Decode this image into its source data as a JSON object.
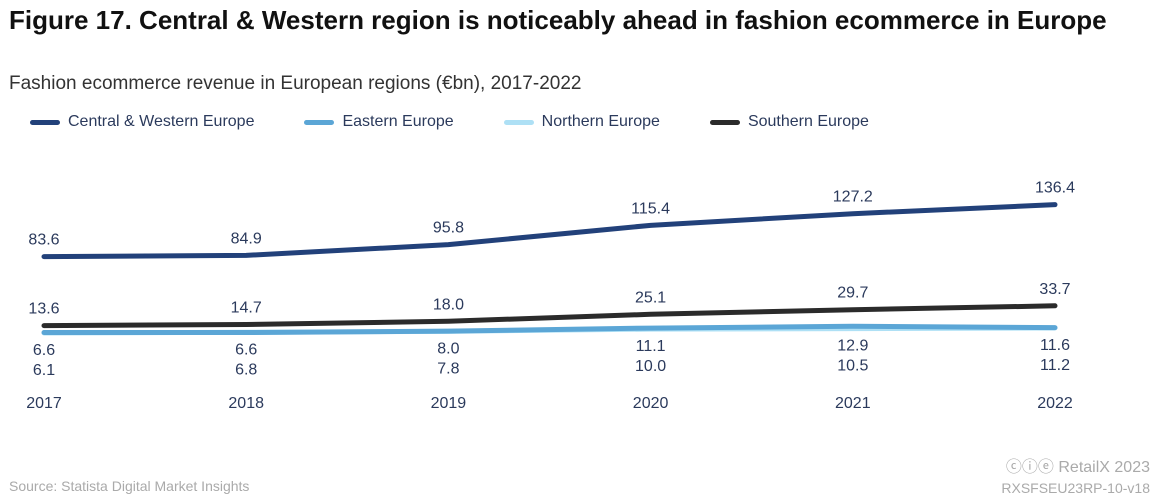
{
  "title": "Figure 17. Central & Western region is noticeably ahead in fashion ecommerce in Europe",
  "subtitle": "Fashion ecommerce revenue in European regions (€bn), 2017-2022",
  "source": "Source: Statista Digital Market Insights",
  "brand": "RetailX 2023",
  "license_icons": "cc-by-nd-icon",
  "code": "RXSFSEU23RP-10-v18",
  "chart_data": {
    "type": "line",
    "categories": [
      "2017",
      "2018",
      "2019",
      "2020",
      "2021",
      "2022"
    ],
    "legend_position": "top-left",
    "grid": false,
    "series": [
      {
        "name": "Central & Western Europe",
        "color": "#22417a",
        "values": [
          83.6,
          84.9,
          95.8,
          115.4,
          127.2,
          136.4
        ]
      },
      {
        "name": "Eastern Europe",
        "color": "#5ba6d6",
        "values": [
          6.6,
          6.6,
          8.0,
          11.1,
          12.9,
          11.6
        ]
      },
      {
        "name": "Northern Europe",
        "color": "#aee0f5",
        "values": [
          6.1,
          6.8,
          7.8,
          10.0,
          10.5,
          11.2
        ]
      },
      {
        "name": "Southern Europe",
        "color": "#2b2b2b",
        "values": [
          13.6,
          14.7,
          18.0,
          25.1,
          29.7,
          33.7
        ]
      }
    ]
  }
}
